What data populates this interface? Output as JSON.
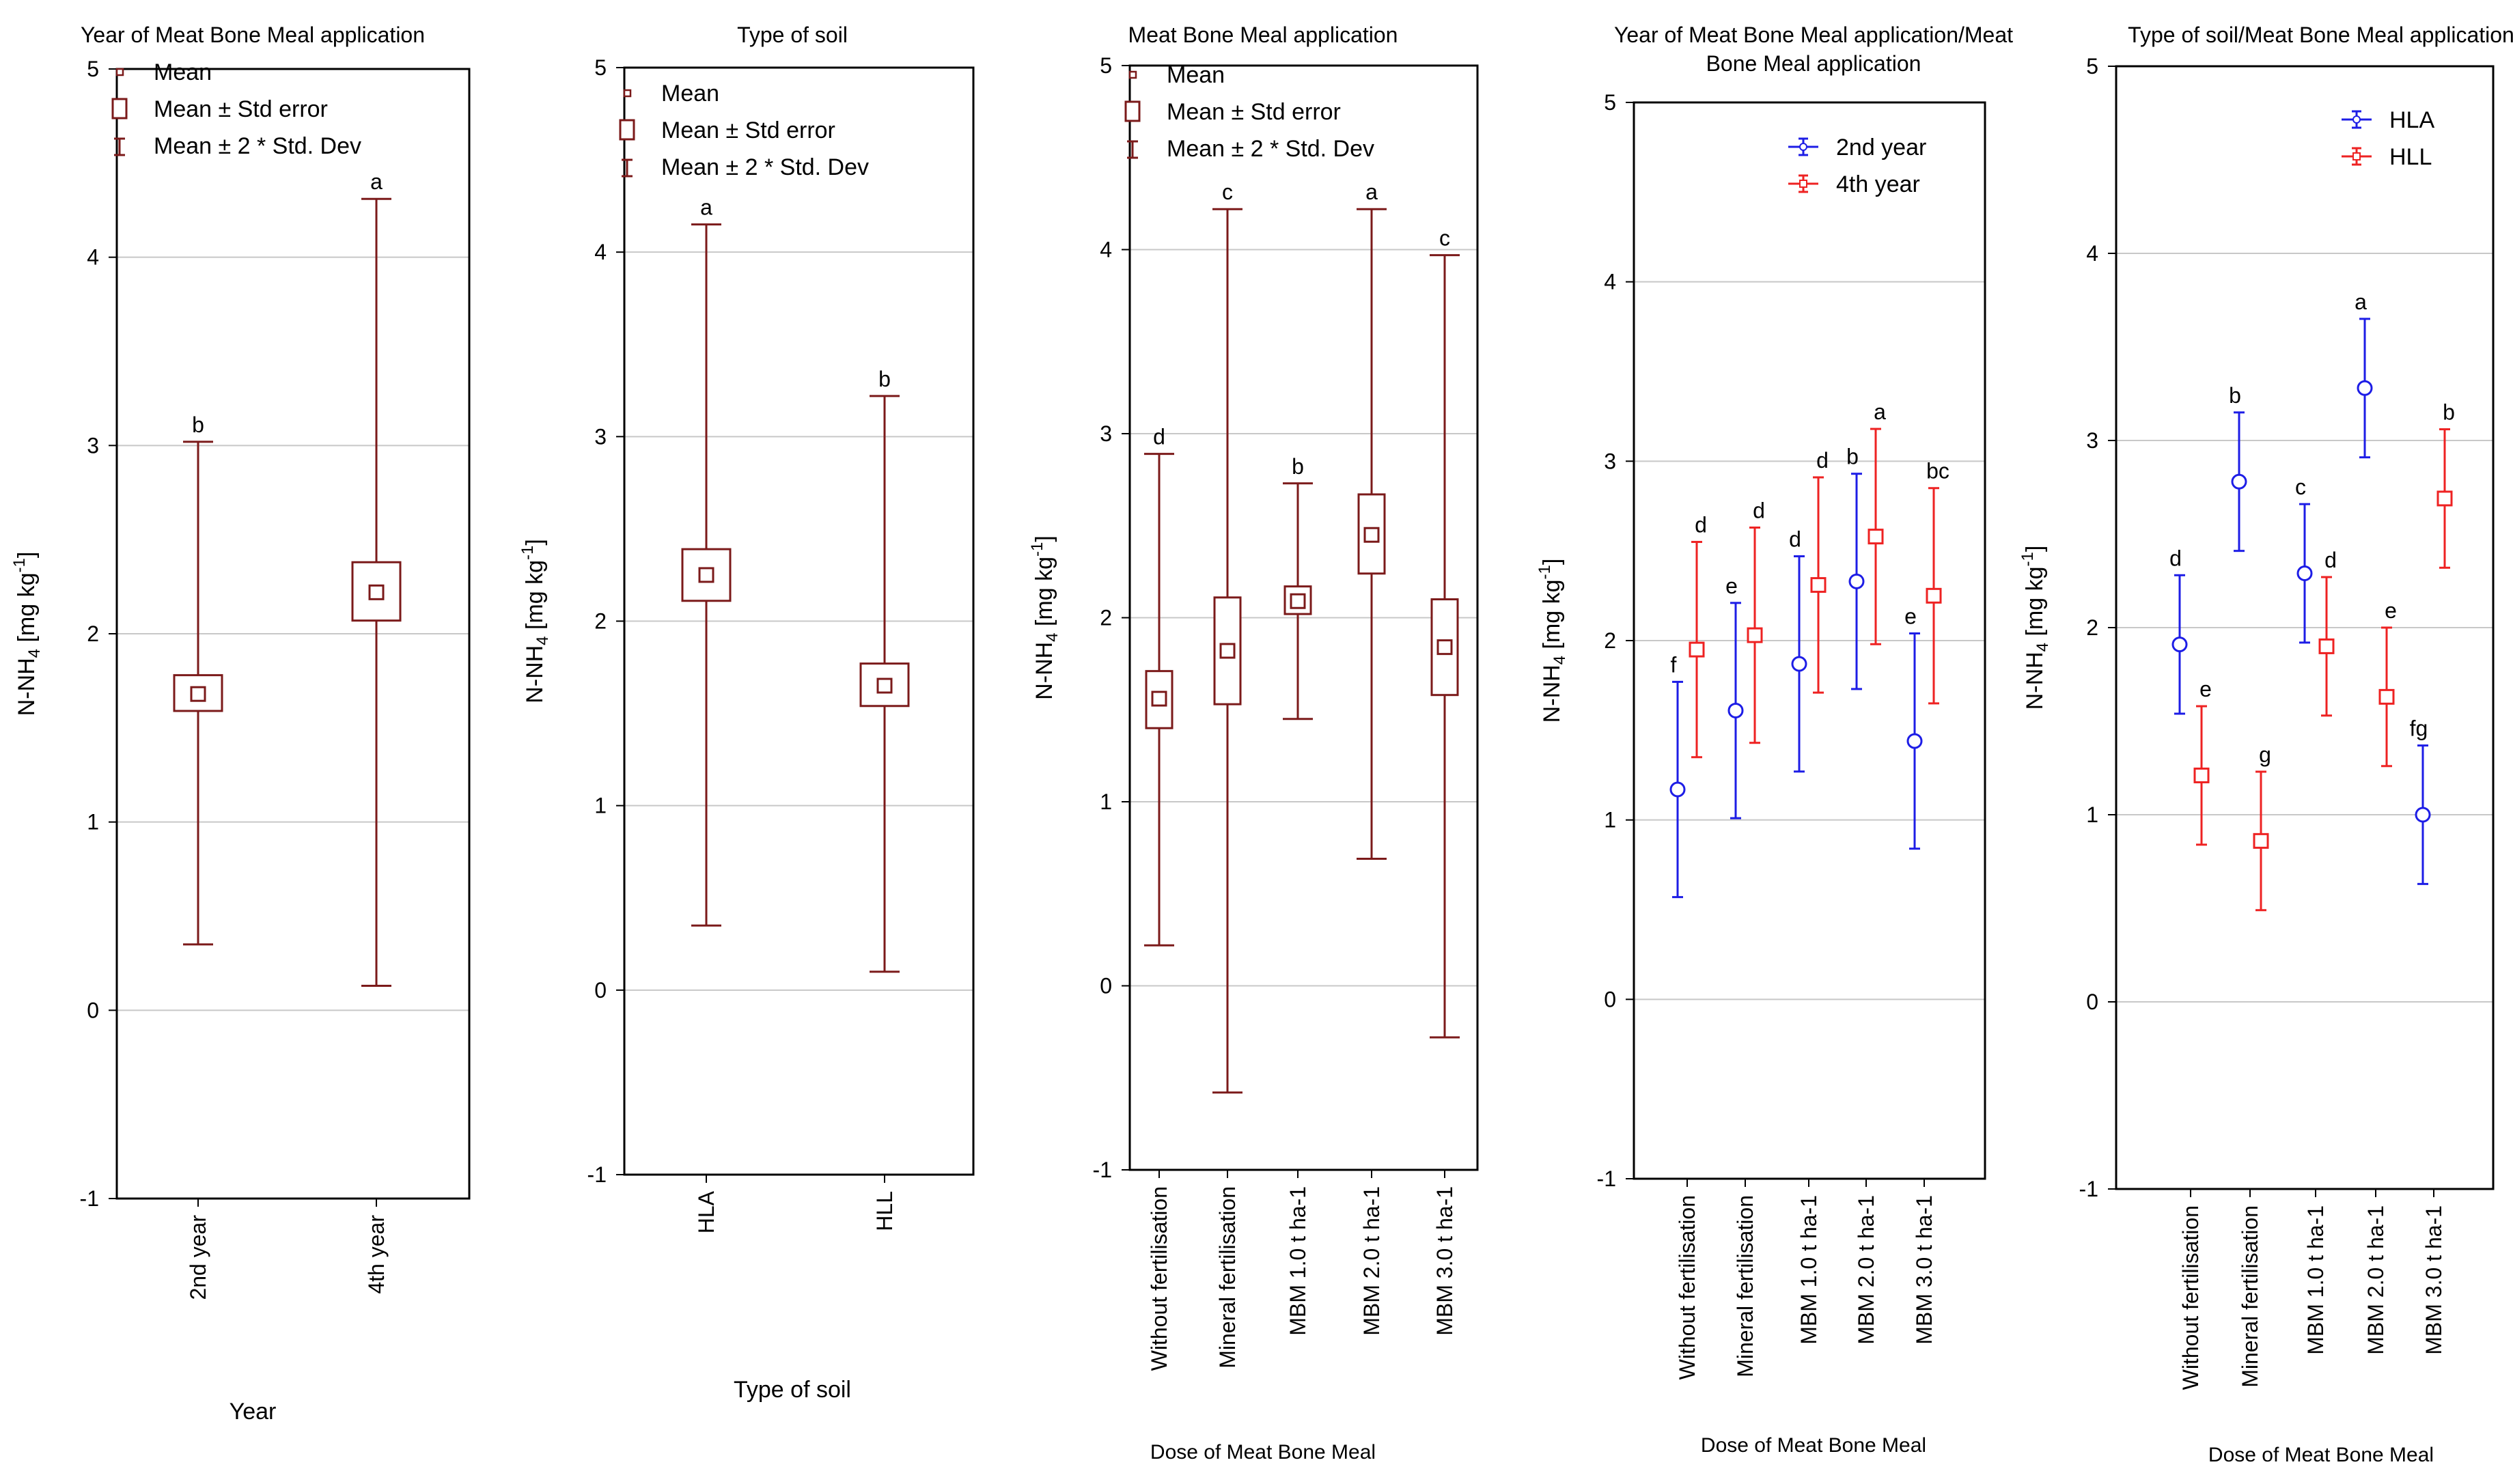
{
  "colors": {
    "box": "#7b1a1a",
    "series_blue": "#1d1de6",
    "series_red": "#ee2222",
    "grid": "#c8c8c8"
  },
  "legend_box": {
    "mean": "Mean",
    "se": "Mean ± Std error",
    "sd": "Mean ± 2 * Std. Dev"
  },
  "chart_data": [
    {
      "type": "box",
      "title": "Year of Meat Bone Meal application",
      "xlabel": "Year",
      "ylabel": "N-NH4 [mg kg-1]",
      "ylim": [
        -1,
        5
      ],
      "yticks": [
        "-1",
        "0",
        "1",
        "2",
        "3",
        "4",
        "5"
      ],
      "legend": [
        "Mean",
        "Mean ± Std error",
        "Mean ± 2 * Std. Dev"
      ],
      "categories": [
        "2nd year",
        "4th year"
      ],
      "mean": [
        1.68,
        2.22
      ],
      "se_low": [
        1.59,
        2.07
      ],
      "se_high": [
        1.78,
        2.38
      ],
      "sd_low": [
        0.35,
        0.13
      ],
      "sd_high": [
        3.02,
        4.31
      ],
      "letters": [
        "b",
        "a"
      ]
    },
    {
      "type": "box",
      "title": "Type of soil",
      "xlabel": "Type of soil",
      "ylabel": "N-NH4 [mg kg-1]",
      "ylim": [
        -1,
        5
      ],
      "yticks": [
        "-1",
        "0",
        "1",
        "2",
        "3",
        "4",
        "5"
      ],
      "legend": [
        "Mean",
        "Mean ± Std error",
        "Mean ± 2 * Std. Dev"
      ],
      "categories": [
        "HLA",
        "HLL"
      ],
      "mean": [
        2.25,
        1.65
      ],
      "se_low": [
        2.11,
        1.54
      ],
      "se_high": [
        2.39,
        1.77
      ],
      "sd_low": [
        0.35,
        0.1
      ],
      "sd_high": [
        4.15,
        3.22
      ],
      "letters": [
        "a",
        "b"
      ]
    },
    {
      "type": "box",
      "title": "Meat Bone Meal application",
      "xlabel": "Dose of Meat Bone Meal",
      "ylabel": "N-NH4 [mg kg-1]",
      "ylim": [
        -1,
        5
      ],
      "yticks": [
        "-1",
        "0",
        "1",
        "2",
        "3",
        "4",
        "5"
      ],
      "legend": [
        "Mean",
        "Mean ± Std error",
        "Mean ± 2 * Std. Dev"
      ],
      "categories": [
        "Without fertilisation",
        "Mineral fertilisation",
        "MBM 1.0 t ha-1",
        "MBM 2.0 t ha-1",
        "MBM 3.0 t ha-1"
      ],
      "mean": [
        1.56,
        1.82,
        2.09,
        2.45,
        1.84
      ],
      "se_low": [
        1.4,
        1.53,
        2.02,
        2.24,
        1.58
      ],
      "se_high": [
        1.71,
        2.11,
        2.17,
        2.67,
        2.1
      ],
      "sd_low": [
        0.22,
        -0.58,
        1.45,
        0.69,
        -0.28
      ],
      "sd_high": [
        2.89,
        4.22,
        2.73,
        4.22,
        3.97
      ],
      "letters": [
        "d",
        "c",
        "b",
        "a",
        "c"
      ]
    },
    {
      "type": "interaction",
      "title_lines": [
        "Year of Meat Bone Meal application/Meat",
        "Bone Meal application"
      ],
      "xlabel": "Dose of Meat Bone Meal",
      "ylabel": "N-NH4 [mg kg-1]",
      "ylim": [
        -1,
        5
      ],
      "yticks": [
        "-1",
        "0",
        "1",
        "2",
        "3",
        "4",
        "5"
      ],
      "categories": [
        "Without fertilisation",
        "Mineral fertilisation",
        "MBM 1.0 t ha-1",
        "MBM 2.0 t ha-1",
        "MBM 3.0 t ha-1"
      ],
      "series": [
        {
          "name": "2nd year",
          "color": "#1d1de6",
          "marker": "circle",
          "values": [
            1.17,
            1.61,
            1.87,
            2.33,
            1.44
          ],
          "err_low": [
            0.57,
            1.01,
            1.27,
            1.73,
            0.84
          ],
          "err_high": [
            1.77,
            2.21,
            2.47,
            2.93,
            2.04
          ],
          "letters": [
            "f",
            "e",
            "d",
            "b",
            "e"
          ]
        },
        {
          "name": "4th year",
          "color": "#ee2222",
          "marker": "square",
          "values": [
            1.95,
            2.03,
            2.31,
            2.58,
            2.25
          ],
          "err_low": [
            1.35,
            1.43,
            1.71,
            1.98,
            1.65
          ],
          "err_high": [
            2.55,
            2.63,
            2.91,
            3.18,
            2.85
          ],
          "letters": [
            "d",
            "d",
            "d",
            "a",
            "bc"
          ]
        }
      ]
    },
    {
      "type": "interaction",
      "title": "Type of soil/Meat Bone Meal application",
      "xlabel": "Dose of Meat Bone Meal",
      "ylabel": "N-NH4 [mg kg-1]",
      "ylim": [
        -1,
        5
      ],
      "yticks": [
        "-1",
        "0",
        "1",
        "2",
        "3",
        "4",
        "5"
      ],
      "categories": [
        "Without fertilisation",
        "Mineral fertilisation",
        "MBM 1.0 t ha-1",
        "MBM 2.0 t ha-1",
        "MBM 3.0 t ha-1"
      ],
      "series": [
        {
          "name": "HLA",
          "color": "#1d1de6",
          "marker": "circle",
          "values": [
            1.91,
            2.78,
            2.29,
            3.28,
            1.0
          ],
          "err_low": [
            1.54,
            2.41,
            1.92,
            2.91,
            0.63
          ],
          "err_high": [
            2.28,
            3.15,
            2.66,
            3.65,
            1.37
          ],
          "letters": [
            "d",
            "b",
            "c",
            "a",
            "fg"
          ]
        },
        {
          "name": "HLL",
          "color": "#ee2222",
          "marker": "square",
          "values": [
            1.21,
            0.86,
            1.9,
            1.63,
            2.69
          ],
          "err_low": [
            0.84,
            0.49,
            1.53,
            1.26,
            2.32
          ],
          "err_high": [
            1.58,
            1.23,
            2.27,
            2.0,
            3.06
          ],
          "letters": [
            "e",
            "g",
            "d",
            "e",
            "b"
          ]
        }
      ]
    }
  ]
}
